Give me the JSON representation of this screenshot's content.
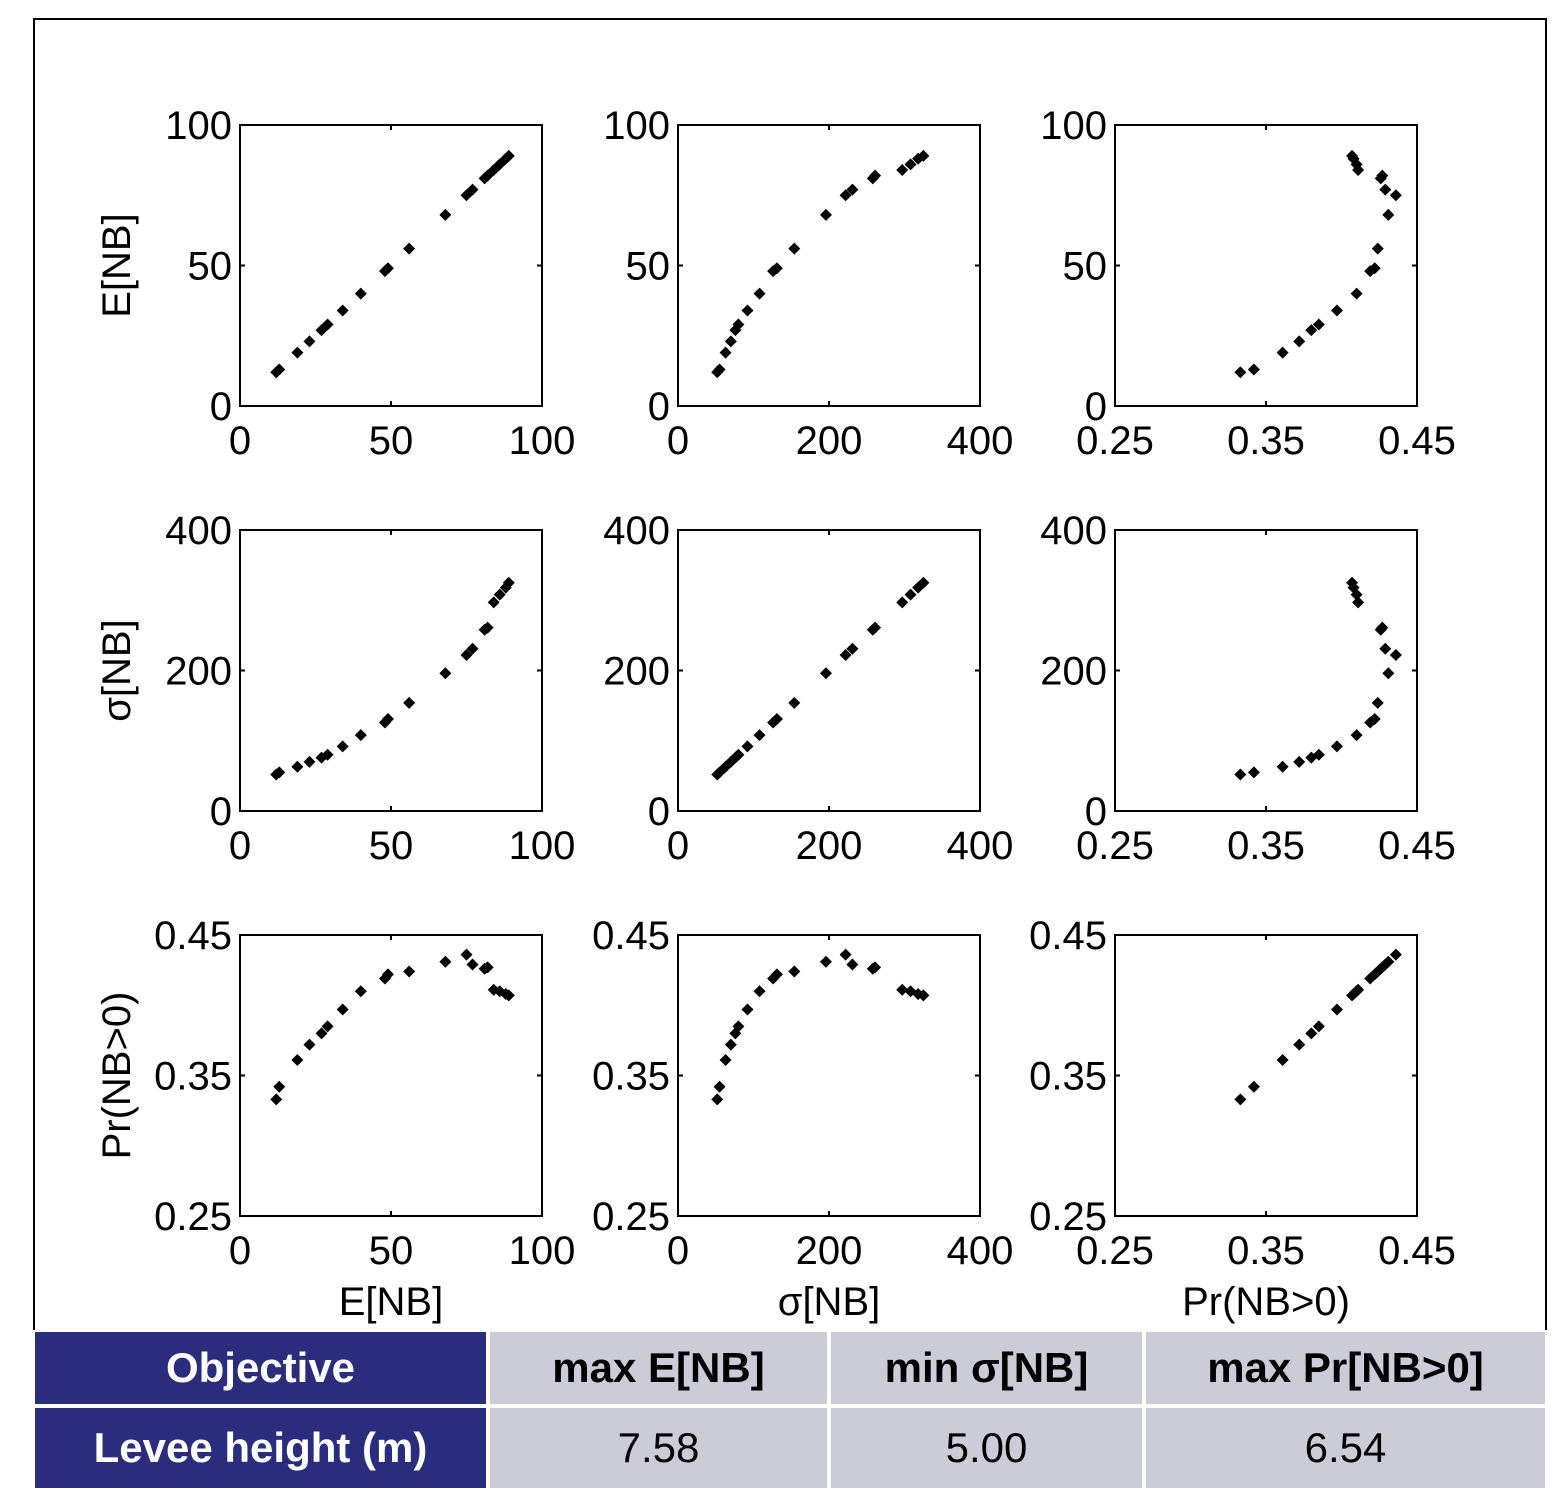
{
  "chart_data": {
    "type": "scatter",
    "variables": [
      {
        "label": "E[NB]",
        "ticks": [
          "0",
          "50",
          "100"
        ],
        "range": [
          0,
          100
        ]
      },
      {
        "label": "σ[NB]",
        "ticks": [
          "0",
          "200",
          "400"
        ],
        "range": [
          0,
          400
        ]
      },
      {
        "label": "Pr(NB>0)",
        "ticks": [
          "0.25",
          "0.35",
          "0.45"
        ],
        "range": [
          0.25,
          0.45
        ]
      }
    ],
    "points": [
      [
        12,
        52,
        0.333
      ],
      [
        13,
        55,
        0.342
      ],
      [
        19,
        63,
        0.361
      ],
      [
        23,
        70,
        0.372
      ],
      [
        27,
        76,
        0.38
      ],
      [
        29,
        80,
        0.385
      ],
      [
        34,
        92,
        0.397
      ],
      [
        40,
        108,
        0.41
      ],
      [
        48,
        126,
        0.419
      ],
      [
        49,
        131,
        0.422
      ],
      [
        56,
        154,
        0.424
      ],
      [
        68,
        196,
        0.431
      ],
      [
        75,
        222,
        0.436
      ],
      [
        77,
        231,
        0.429
      ],
      [
        81,
        258,
        0.426
      ],
      [
        82,
        261,
        0.427
      ],
      [
        84,
        297,
        0.411
      ],
      [
        86,
        308,
        0.41
      ],
      [
        88,
        318,
        0.408
      ],
      [
        89,
        325,
        0.407
      ]
    ]
  },
  "table": {
    "header": [
      "Objective",
      "max E[NB]",
      "min σ[NB]",
      "max Pr[NB>0]"
    ],
    "row": [
      "Levee height (m)",
      "7.58",
      "5.00",
      "6.54"
    ]
  }
}
